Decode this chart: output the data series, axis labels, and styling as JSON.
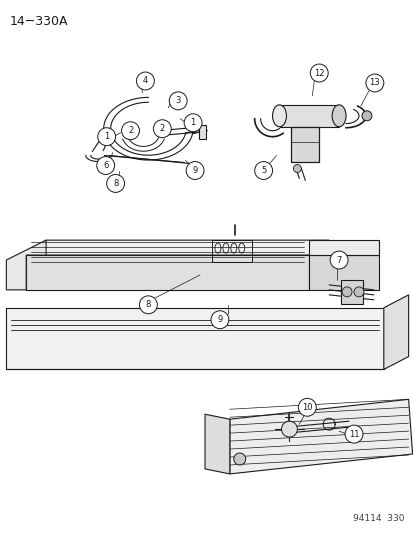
{
  "title": "14−330A",
  "footer": "94114  330",
  "bg_color": "#ffffff",
  "line_color": "#1a1a1a",
  "fig_width": 4.14,
  "fig_height": 5.33,
  "dpi": 100,
  "title_fontsize": 9,
  "footer_fontsize": 6.5,
  "label_circle_r": 0.016,
  "label_fontsize": 6.0
}
